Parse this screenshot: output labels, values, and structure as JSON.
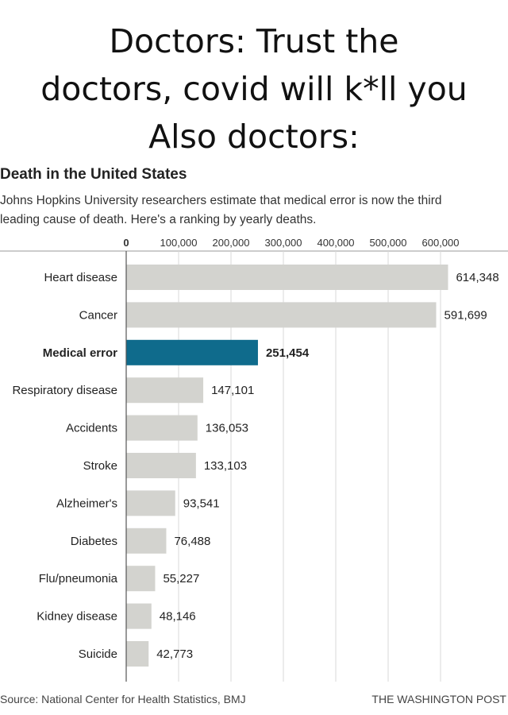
{
  "meme": {
    "lines": [
      "Doctors: Trust the",
      "doctors, covid will k*ll you",
      "Also doctors:"
    ]
  },
  "chart_data": {
    "type": "bar",
    "orientation": "horizontal",
    "title": "Death in the United States",
    "subtitle": "Johns Hopkins University researchers estimate that medical error is now the third leading cause of death. Here's a ranking by yearly deaths.",
    "subtitle_lines": [
      "Johns Hopkins University researchers estimate that medical error is now the third",
      "leading cause of death. Here's a ranking by yearly deaths."
    ],
    "categories": [
      "Heart disease",
      "Cancer",
      "Medical error",
      "Respiratory disease",
      "Accidents",
      "Stroke",
      "Alzheimer's",
      "Diabetes",
      "Flu/pneumonia",
      "Kidney disease",
      "Suicide"
    ],
    "values": [
      614348,
      591699,
      251454,
      147101,
      136053,
      133103,
      93541,
      76488,
      55227,
      48146,
      42773
    ],
    "value_labels": [
      "614,348",
      "591,699",
      "251,454",
      "147,101",
      "136,053",
      "133,103",
      "93,541",
      "76,488",
      "55,227",
      "48,146",
      "42,773"
    ],
    "highlight": "Medical error",
    "xticks": [
      0,
      100000,
      200000,
      300000,
      400000,
      500000,
      600000
    ],
    "xtick_labels": [
      "0",
      "100,000",
      "200,000",
      "300,000",
      "400,000",
      "500,000",
      "600,000"
    ],
    "xlim": [
      0,
      600000
    ],
    "grid": true,
    "colors": {
      "bar": "#d3d3cf",
      "highlight": "#0f6b8c",
      "grid": "#d9d9d9",
      "axis": "#555555"
    }
  },
  "footer": {
    "source": "Source: National Center for Health Statistics, BMJ",
    "credit": "THE WASHINGTON POST"
  }
}
